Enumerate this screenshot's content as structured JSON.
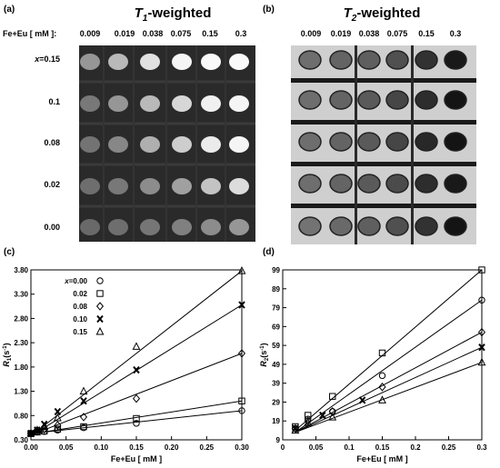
{
  "panel_a": {
    "letter": "(a)",
    "title_main": "T",
    "title_sub": "1",
    "title_rest": "-weighted",
    "conc_label": "Fe+Eu [ mM ]:",
    "concentrations": [
      "0.009",
      "0.019",
      "0.038",
      "0.075",
      "0.15",
      "0.3"
    ],
    "row_labels": [
      "x=0.15",
      "0.1",
      "0.08",
      "0.02",
      "0.00"
    ]
  },
  "panel_b": {
    "letter": "(b)",
    "title_main": "T",
    "title_sub": "2",
    "title_rest": "-weighted",
    "concentrations": [
      "0.009",
      "0.019",
      "0.038",
      "0.075",
      "0.15",
      "0.3"
    ]
  },
  "panel_c": {
    "letter": "(c)"
  },
  "panel_d": {
    "letter": "(d)"
  },
  "chart_data": [
    {
      "type": "scatter",
      "panel": "c",
      "xlabel": "Fe+Eu [ mM ]",
      "ylabel": "R1(s-1)",
      "xlim": [
        0,
        0.3
      ],
      "ylim": [
        0.3,
        3.8
      ],
      "xticks": [
        "0.00",
        "0.05",
        "0.10",
        "0.15",
        "0.20",
        "0.25",
        "0.30"
      ],
      "yticks": [
        "0.30",
        "0.80",
        "1.30",
        "1.80",
        "2.30",
        "2.80",
        "3.30",
        "3.80"
      ],
      "legend_position": "top-left",
      "series": [
        {
          "name": "x=0.00",
          "marker": "circle",
          "points": [
            [
              0.0,
              0.43
            ],
            [
              0.009,
              0.46
            ],
            [
              0.019,
              0.47
            ],
            [
              0.038,
              0.5
            ],
            [
              0.075,
              0.55
            ],
            [
              0.15,
              0.64
            ],
            [
              0.3,
              0.9
            ]
          ],
          "fit": [
            [
              0.0,
              0.43
            ],
            [
              0.3,
              0.9
            ]
          ]
        },
        {
          "name": "0.02",
          "marker": "square",
          "points": [
            [
              0.0,
              0.43
            ],
            [
              0.009,
              0.46
            ],
            [
              0.019,
              0.48
            ],
            [
              0.038,
              0.52
            ],
            [
              0.075,
              0.57
            ],
            [
              0.15,
              0.74
            ],
            [
              0.3,
              1.1
            ]
          ],
          "fit": [
            [
              0.0,
              0.42
            ],
            [
              0.3,
              1.1
            ]
          ]
        },
        {
          "name": "0.08",
          "marker": "diamond",
          "points": [
            [
              0.0,
              0.43
            ],
            [
              0.009,
              0.48
            ],
            [
              0.019,
              0.52
            ],
            [
              0.038,
              0.6
            ],
            [
              0.075,
              0.77
            ],
            [
              0.15,
              1.15
            ],
            [
              0.3,
              2.08
            ]
          ],
          "fit": [
            [
              0.0,
              0.4
            ],
            [
              0.3,
              2.08
            ]
          ]
        },
        {
          "name": "0.10",
          "marker": "x",
          "points": [
            [
              0.0,
              0.43
            ],
            [
              0.009,
              0.5
            ],
            [
              0.019,
              0.62
            ],
            [
              0.038,
              0.88
            ],
            [
              0.075,
              1.1
            ],
            [
              0.15,
              1.74
            ],
            [
              0.3,
              3.08
            ]
          ],
          "fit": [
            [
              0.0,
              0.38
            ],
            [
              0.3,
              3.08
            ]
          ]
        },
        {
          "name": "0.15",
          "marker": "triangle",
          "points": [
            [
              0.0,
              0.43
            ],
            [
              0.009,
              0.5
            ],
            [
              0.019,
              0.57
            ],
            [
              0.038,
              0.75
            ],
            [
              0.075,
              1.3
            ],
            [
              0.15,
              2.22
            ],
            [
              0.3,
              3.78
            ]
          ],
          "fit": [
            [
              0.0,
              0.38
            ],
            [
              0.3,
              3.78
            ]
          ]
        }
      ]
    },
    {
      "type": "scatter",
      "panel": "d",
      "xlabel": "Fe+Eu [ mM ]",
      "ylabel": "R2(s-1)",
      "xlim": [
        0,
        0.3
      ],
      "ylim": [
        9,
        99
      ],
      "xticks": [
        "0",
        "0.05",
        "0.1",
        "0.15",
        "0.2",
        "0.25",
        "0.3"
      ],
      "yticks": [
        "9",
        "19",
        "29",
        "39",
        "49",
        "59",
        "69",
        "79",
        "89",
        "99"
      ],
      "series": [
        {
          "marker": "circle",
          "points": [
            [
              0.019,
              15
            ],
            [
              0.038,
              20
            ],
            [
              0.075,
              24
            ],
            [
              0.15,
              43
            ],
            [
              0.3,
              83
            ]
          ],
          "fit": [
            [
              0.019,
              13
            ],
            [
              0.3,
              83
            ]
          ]
        },
        {
          "marker": "square",
          "points": [
            [
              0.019,
              16
            ],
            [
              0.038,
              22
            ],
            [
              0.075,
              32
            ],
            [
              0.15,
              55
            ],
            [
              0.3,
              99
            ]
          ],
          "fit": [
            [
              0.019,
              14
            ],
            [
              0.3,
              99
            ]
          ]
        },
        {
          "marker": "diamond",
          "points": [
            [
              0.019,
              15
            ],
            [
              0.038,
              19
            ],
            [
              0.075,
              24
            ],
            [
              0.15,
              37
            ],
            [
              0.3,
              66
            ]
          ],
          "fit": [
            [
              0.019,
              13
            ],
            [
              0.3,
              66
            ]
          ]
        },
        {
          "marker": "x",
          "points": [
            [
              0.019,
              15
            ],
            [
              0.06,
              22
            ],
            [
              0.12,
              30
            ],
            [
              0.3,
              58
            ]
          ],
          "fit": [
            [
              0.019,
              13
            ],
            [
              0.3,
              58
            ]
          ]
        },
        {
          "marker": "triangle",
          "points": [
            [
              0.019,
              14
            ],
            [
              0.038,
              18
            ],
            [
              0.075,
              21
            ],
            [
              0.15,
              30
            ],
            [
              0.3,
              50
            ]
          ],
          "fit": [
            [
              0.019,
              13
            ],
            [
              0.3,
              50
            ]
          ]
        }
      ]
    }
  ]
}
